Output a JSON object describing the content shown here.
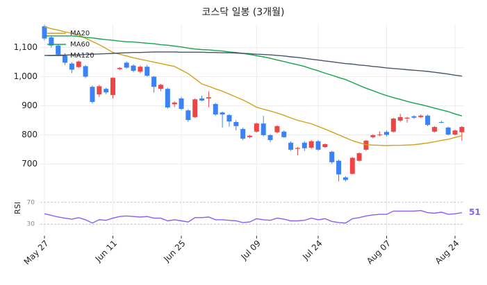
{
  "chart_data": {
    "type": "candlestick",
    "title": "코스닥 일봉 (3개월)",
    "categories": [
      "May 27",
      null,
      null,
      null,
      null,
      null,
      null,
      null,
      null,
      null,
      "Jun 11",
      null,
      null,
      null,
      null,
      null,
      null,
      null,
      null,
      null,
      "Jun 25",
      null,
      null,
      null,
      null,
      null,
      null,
      null,
      null,
      null,
      null,
      "Jul 09",
      null,
      null,
      null,
      null,
      null,
      null,
      null,
      null,
      "Jul 24",
      null,
      null,
      null,
      null,
      null,
      null,
      null,
      null,
      null,
      "Aug 07",
      null,
      null,
      null,
      null,
      null,
      null,
      null,
      null,
      null,
      "Aug 24",
      null
    ],
    "open": [
      1173,
      1135,
      1107,
      1072,
      1045,
      1033,
      1036,
      965,
      939,
      958,
      937,
      1026,
      1048,
      1038,
      1017,
      1034,
      1000,
      958,
      958,
      905,
      925,
      884,
      861,
      925,
      925,
      906,
      877,
      868,
      844,
      820,
      792,
      811,
      839,
      799,
      809,
      811,
      773,
      752,
      773,
      756,
      778,
      758,
      742,
      711,
      654,
      666,
      711,
      749,
      792,
      799,
      810,
      811,
      849,
      856,
      864,
      861,
      866,
      811,
      844,
      825,
      801,
      809
    ],
    "high": [
      1178,
      1140,
      1112,
      1080,
      1050,
      1055,
      1040,
      970,
      972,
      962,
      998,
      1033,
      1052,
      1042,
      1038,
      1040,
      1002,
      975,
      962,
      915,
      930,
      888,
      925,
      935,
      950,
      910,
      880,
      872,
      850,
      825,
      800,
      842,
      865,
      802,
      833,
      815,
      778,
      758,
      778,
      782,
      782,
      770,
      745,
      715,
      658,
      724,
      740,
      782,
      802,
      812,
      815,
      858,
      872,
      862,
      867,
      870,
      870,
      830,
      848,
      828,
      818,
      830
    ],
    "low": [
      1125,
      1100,
      1070,
      1040,
      1012,
      1030,
      995,
      908,
      930,
      940,
      925,
      1022,
      1028,
      1015,
      1012,
      1000,
      945,
      950,
      890,
      895,
      885,
      845,
      858,
      915,
      895,
      866,
      825,
      828,
      815,
      782,
      788,
      808,
      795,
      775,
      805,
      790,
      745,
      730,
      745,
      752,
      745,
      755,
      700,
      640,
      640,
      664,
      708,
      745,
      788,
      795,
      795,
      808,
      845,
      842,
      855,
      858,
      830,
      808,
      840,
      798,
      798,
      780
    ],
    "close": [
      1131,
      1107,
      1076,
      1048,
      1024,
      1052,
      1000,
      913,
      967,
      946,
      996,
      1030,
      1031,
      1020,
      1034,
      1003,
      965,
      972,
      894,
      911,
      889,
      851,
      922,
      918,
      929,
      870,
      870,
      846,
      830,
      787,
      797,
      839,
      799,
      782,
      830,
      792,
      749,
      755,
      754,
      778,
      749,
      768,
      706,
      664,
      645,
      721,
      737,
      780,
      799,
      801,
      800,
      856,
      861,
      859,
      859,
      866,
      834,
      827,
      842,
      801,
      815,
      827
    ],
    "up_color": "#ef4444",
    "down_color": "#3b82f6",
    "series": [
      {
        "name": "MA20",
        "color": "#d4a017",
        "values": [
          1171,
          1165,
          1160,
          1154,
          1149,
          1143,
          1132,
          1121,
          1110,
          1097,
          1083,
          1077,
          1071,
          1065,
          1060,
          1055,
          1050,
          1045,
          1040,
          1035,
          1023,
          1010,
          993,
          975,
          967,
          958,
          950,
          940,
          930,
          920,
          908,
          895,
          888,
          882,
          875,
          867,
          858,
          850,
          844,
          838,
          829,
          820,
          810,
          800,
          790,
          780,
          773,
          766,
          765,
          764,
          763,
          764,
          764,
          765,
          766,
          769,
          772,
          776,
          781,
          785,
          791,
          797
        ]
      },
      {
        "name": "MA60",
        "color": "#16a34a",
        "values": [
          1140,
          1140,
          1140,
          1140,
          1140,
          1138,
          1135,
          1133,
          1130,
          1127,
          1125,
          1122,
          1120,
          1119,
          1117,
          1115,
          1113,
          1110,
          1108,
          1105,
          1102,
          1098,
          1095,
          1093,
          1092,
          1090,
          1088,
          1085,
          1083,
          1080,
          1076,
          1072,
          1068,
          1063,
          1057,
          1052,
          1046,
          1041,
          1035,
          1027,
          1020,
          1012,
          1005,
          997,
          990,
          980,
          970,
          960,
          952,
          943,
          935,
          928,
          922,
          915,
          909,
          904,
          898,
          892,
          886,
          880,
          872,
          865
        ]
      },
      {
        "name": "MA120",
        "color": "#475569",
        "values": [
          1073,
          1073,
          1074,
          1074,
          1075,
          1075,
          1076,
          1077,
          1078,
          1079,
          1080,
          1081,
          1082,
          1083,
          1083,
          1084,
          1085,
          1085,
          1085,
          1085,
          1084,
          1084,
          1084,
          1084,
          1083,
          1083,
          1082,
          1082,
          1081,
          1080,
          1079,
          1077,
          1076,
          1075,
          1073,
          1071,
          1068,
          1066,
          1063,
          1060,
          1057,
          1054,
          1051,
          1048,
          1045,
          1043,
          1040,
          1038,
          1035,
          1033,
          1030,
          1028,
          1026,
          1024,
          1022,
          1020,
          1018,
          1015,
          1012,
          1009,
          1005,
          1002
        ]
      }
    ],
    "legend": "upper left",
    "grid": true,
    "ylim": [
      620,
      1180
    ],
    "yticks": [
      700,
      800,
      900,
      {
        "value": 1000,
        "label": "1,000"
      },
      {
        "value": 1100,
        "label": "1,100"
      }
    ],
    "rsi": {
      "label": "RSI",
      "color": "#8b5cf6",
      "values": [
        49,
        46,
        43,
        41,
        39,
        42,
        38,
        32,
        38,
        37,
        41,
        44,
        45,
        44,
        43,
        44,
        41,
        41,
        36,
        38,
        36,
        34,
        42,
        42,
        43,
        38,
        38,
        37,
        36,
        33,
        34,
        40,
        38,
        37,
        41,
        39,
        36,
        36,
        37,
        41,
        38,
        40,
        35,
        33,
        32,
        40,
        42,
        45,
        47,
        48,
        48,
        54,
        54,
        54,
        54,
        55,
        51,
        50,
        52,
        48,
        49,
        51
      ],
      "ylim": [
        15,
        85
      ],
      "yticks": [
        30,
        70
      ],
      "line_colors": [
        "#93b4e6",
        "#f0a0a0"
      ]
    }
  }
}
